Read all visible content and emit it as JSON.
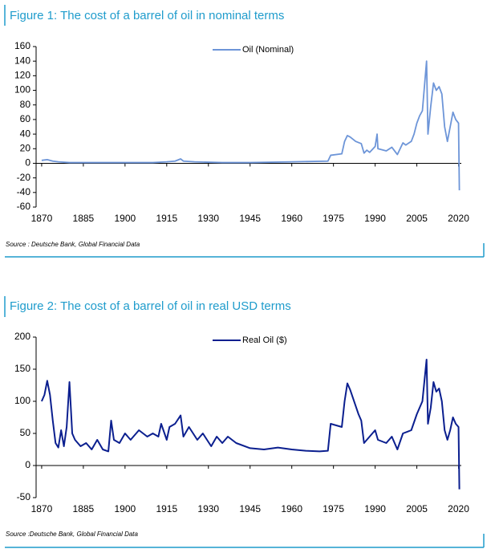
{
  "chart_data": [
    {
      "type": "line",
      "title": "Figure 1: The cost of a barrel of oil in nominal terms",
      "source": "Source : Deutsche Bank, Global Financial Data",
      "xlim": [
        1868,
        2021
      ],
      "xticks": [
        1870,
        1885,
        1900,
        1915,
        1930,
        1945,
        1960,
        1975,
        1990,
        2005,
        2020
      ],
      "ylim": [
        -60,
        160
      ],
      "yticks": [
        -60,
        -40,
        -20,
        0,
        20,
        40,
        60,
        80,
        100,
        120,
        140,
        160
      ],
      "grid": false,
      "legend": "upper center",
      "series": [
        {
          "name": "Oil (Nominal)",
          "color": "#6d95d8",
          "x": [
            1870,
            1872,
            1874,
            1876,
            1880,
            1890,
            1900,
            1910,
            1915,
            1918,
            1920,
            1921,
            1925,
            1935,
            1945,
            1960,
            1973,
            1974,
            1978,
            1979,
            1980,
            1981,
            1983,
            1985,
            1986,
            1987,
            1988,
            1990,
            1990.7,
            1991,
            1994,
            1996,
            1998,
            2000,
            2001,
            2003,
            2004,
            2005,
            2006,
            2007,
            2008.5,
            2009,
            2010,
            2011,
            2012,
            2013,
            2014,
            2015,
            2016,
            2017,
            2018,
            2019,
            2020,
            2020.3
          ],
          "values": [
            4,
            5,
            3,
            2,
            1,
            1,
            1,
            1,
            2,
            3,
            6,
            3,
            2,
            1,
            1,
            2,
            3,
            11,
            13,
            30,
            38,
            36,
            30,
            27,
            14,
            18,
            15,
            23,
            40,
            20,
            17,
            22,
            12,
            28,
            25,
            30,
            40,
            55,
            65,
            72,
            140,
            40,
            78,
            110,
            100,
            105,
            95,
            50,
            30,
            50,
            70,
            60,
            55,
            -37
          ]
        }
      ]
    },
    {
      "type": "line",
      "title": "Figure 2: The cost of a barrel of oil in real USD terms",
      "source": "Source :Deutsche Bank, Global Financial Data",
      "xlim": [
        1868,
        2021
      ],
      "xticks": [
        1870,
        1885,
        1900,
        1915,
        1930,
        1945,
        1960,
        1975,
        1990,
        2005,
        2020
      ],
      "ylim": [
        -50,
        200
      ],
      "yticks": [
        -50,
        0,
        50,
        100,
        150,
        200
      ],
      "grid": false,
      "legend": "upper center",
      "series": [
        {
          "name": "Real Oil ($)",
          "color": "#0b1f8f",
          "x": [
            1870,
            1871,
            1872,
            1873,
            1874,
            1875,
            1876,
            1877,
            1878,
            1879,
            1880,
            1881,
            1882,
            1884,
            1886,
            1888,
            1890,
            1892,
            1894,
            1895,
            1896,
            1898,
            1900,
            1902,
            1905,
            1908,
            1910,
            1912,
            1913,
            1915,
            1916,
            1918,
            1920,
            1921,
            1923,
            1926,
            1928,
            1931,
            1933,
            1935,
            1937,
            1940,
            1945,
            1950,
            1955,
            1960,
            1965,
            1970,
            1973,
            1974,
            1978,
            1979,
            1980,
            1981,
            1984,
            1985,
            1986,
            1988,
            1990,
            1991,
            1994,
            1996,
            1998,
            2000,
            2003,
            2005,
            2007,
            2008.5,
            2009,
            2010,
            2011,
            2012,
            2013,
            2014,
            2015,
            2016,
            2017,
            2018,
            2019,
            2020,
            2020.3
          ],
          "values": [
            100,
            110,
            132,
            110,
            70,
            35,
            28,
            55,
            30,
            60,
            130,
            50,
            40,
            30,
            35,
            25,
            40,
            25,
            22,
            70,
            40,
            35,
            50,
            40,
            55,
            45,
            50,
            45,
            65,
            40,
            60,
            65,
            78,
            45,
            60,
            40,
            50,
            30,
            45,
            35,
            45,
            35,
            27,
            25,
            28,
            25,
            23,
            22,
            23,
            65,
            60,
            100,
            128,
            118,
            80,
            70,
            35,
            45,
            55,
            40,
            35,
            45,
            25,
            50,
            55,
            80,
            100,
            165,
            65,
            90,
            130,
            115,
            120,
            100,
            55,
            40,
            55,
            75,
            65,
            60,
            -37
          ]
        }
      ]
    }
  ]
}
